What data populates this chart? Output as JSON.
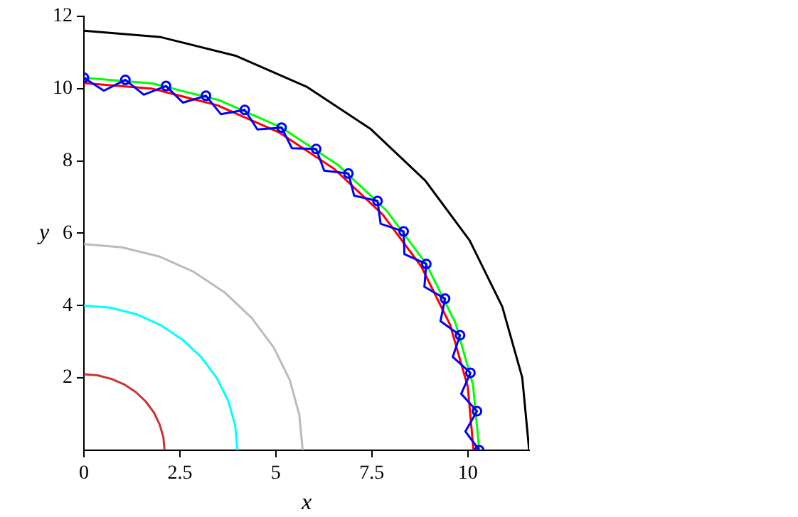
{
  "chart_data": {
    "type": "line",
    "xlabel": "x",
    "ylabel": "y",
    "xlim": [
      0,
      11.6
    ],
    "ylim": [
      0,
      12
    ],
    "xticks": [
      0,
      2.5,
      5,
      7.5,
      10
    ],
    "yticks": [
      2,
      4,
      6,
      8,
      10,
      12
    ],
    "grid": false,
    "legend": false,
    "marker": "none",
    "line_style": "solid",
    "series": [
      {
        "type": "line",
        "color": "#cc3333",
        "x": [
          0,
          0.36,
          0.72,
          1.05,
          1.35,
          1.61,
          1.82,
          1.97,
          2.07,
          2.1
        ],
        "values": [
          2.1,
          2.07,
          1.97,
          1.82,
          1.61,
          1.35,
          1.05,
          0.72,
          0.36,
          0
        ]
      },
      {
        "type": "line",
        "color": "#00ffff",
        "x": [
          0,
          0.69,
          1.37,
          2,
          2.57,
          3.06,
          3.46,
          3.76,
          3.94,
          4
        ],
        "values": [
          4,
          3.94,
          3.76,
          3.46,
          3.06,
          2.57,
          2,
          1.37,
          0.69,
          0
        ]
      },
      {
        "type": "line",
        "color": "#bbbbbb",
        "x": [
          0,
          0.99,
          1.95,
          2.85,
          3.66,
          4.37,
          4.94,
          5.36,
          5.61,
          5.7
        ],
        "values": [
          5.7,
          5.61,
          5.36,
          4.94,
          4.37,
          3.66,
          2.85,
          1.95,
          0.99,
          0
        ]
      },
      {
        "type": "line",
        "color": "#000000",
        "x": [
          0,
          2.01,
          3.97,
          5.8,
          7.46,
          8.89,
          10.05,
          10.9,
          11.42,
          11.6
        ],
        "values": [
          11.6,
          11.42,
          10.9,
          10.05,
          8.89,
          7.46,
          5.8,
          3.97,
          2.01,
          0
        ]
      },
      {
        "type": "line",
        "color": "#0000ff",
        "x": [
          0,
          0.52,
          1.08,
          1.56,
          2.14,
          2.58,
          3.18,
          3.57,
          4.19,
          4.52,
          5.15,
          5.42,
          6.05,
          6.26,
          6.89,
          7.04,
          7.65,
          7.73,
          8.33,
          8.35,
          8.92,
          8.87,
          9.41,
          9.29,
          9.8,
          9.61,
          10.07,
          9.83,
          10.24,
          9.94,
          10.3
        ],
        "values": [
          10.3,
          9.94,
          10.24,
          9.83,
          10.07,
          9.61,
          9.8,
          9.29,
          9.41,
          8.87,
          8.92,
          8.35,
          8.33,
          7.73,
          7.65,
          7.04,
          6.89,
          6.26,
          6.05,
          5.42,
          5.15,
          4.52,
          4.19,
          3.57,
          3.18,
          2.58,
          2.14,
          1.56,
          1.08,
          0.52,
          0
        ]
      },
      {
        "type": "scatter",
        "color": "#0000ff",
        "marker": "circle",
        "x": [
          0,
          1.08,
          2.14,
          3.18,
          4.19,
          5.15,
          6.05,
          6.89,
          7.65,
          8.33,
          8.92,
          9.41,
          9.8,
          10.07,
          10.24,
          10.3
        ],
        "values": [
          10.3,
          10.24,
          10.07,
          9.8,
          9.41,
          8.92,
          8.33,
          7.65,
          6.89,
          6.05,
          5.15,
          4.19,
          3.18,
          2.14,
          1.08,
          0
        ]
      },
      {
        "type": "line",
        "color": "#ff0000",
        "x": [
          0,
          1.76,
          3.47,
          5.08,
          6.52,
          7.78,
          8.79,
          9.54,
          10,
          10.15
        ],
        "values": [
          10.15,
          10,
          9.54,
          8.79,
          7.78,
          6.52,
          5.08,
          3.47,
          1.76,
          0
        ]
      },
      {
        "type": "line",
        "color": "#00ff00",
        "x": [
          0,
          1.79,
          3.52,
          5.15,
          6.62,
          7.89,
          8.92,
          9.68,
          10.14,
          10.3
        ],
        "values": [
          10.3,
          10.14,
          9.68,
          8.92,
          7.89,
          6.62,
          5.15,
          3.52,
          1.79,
          0
        ]
      }
    ]
  }
}
